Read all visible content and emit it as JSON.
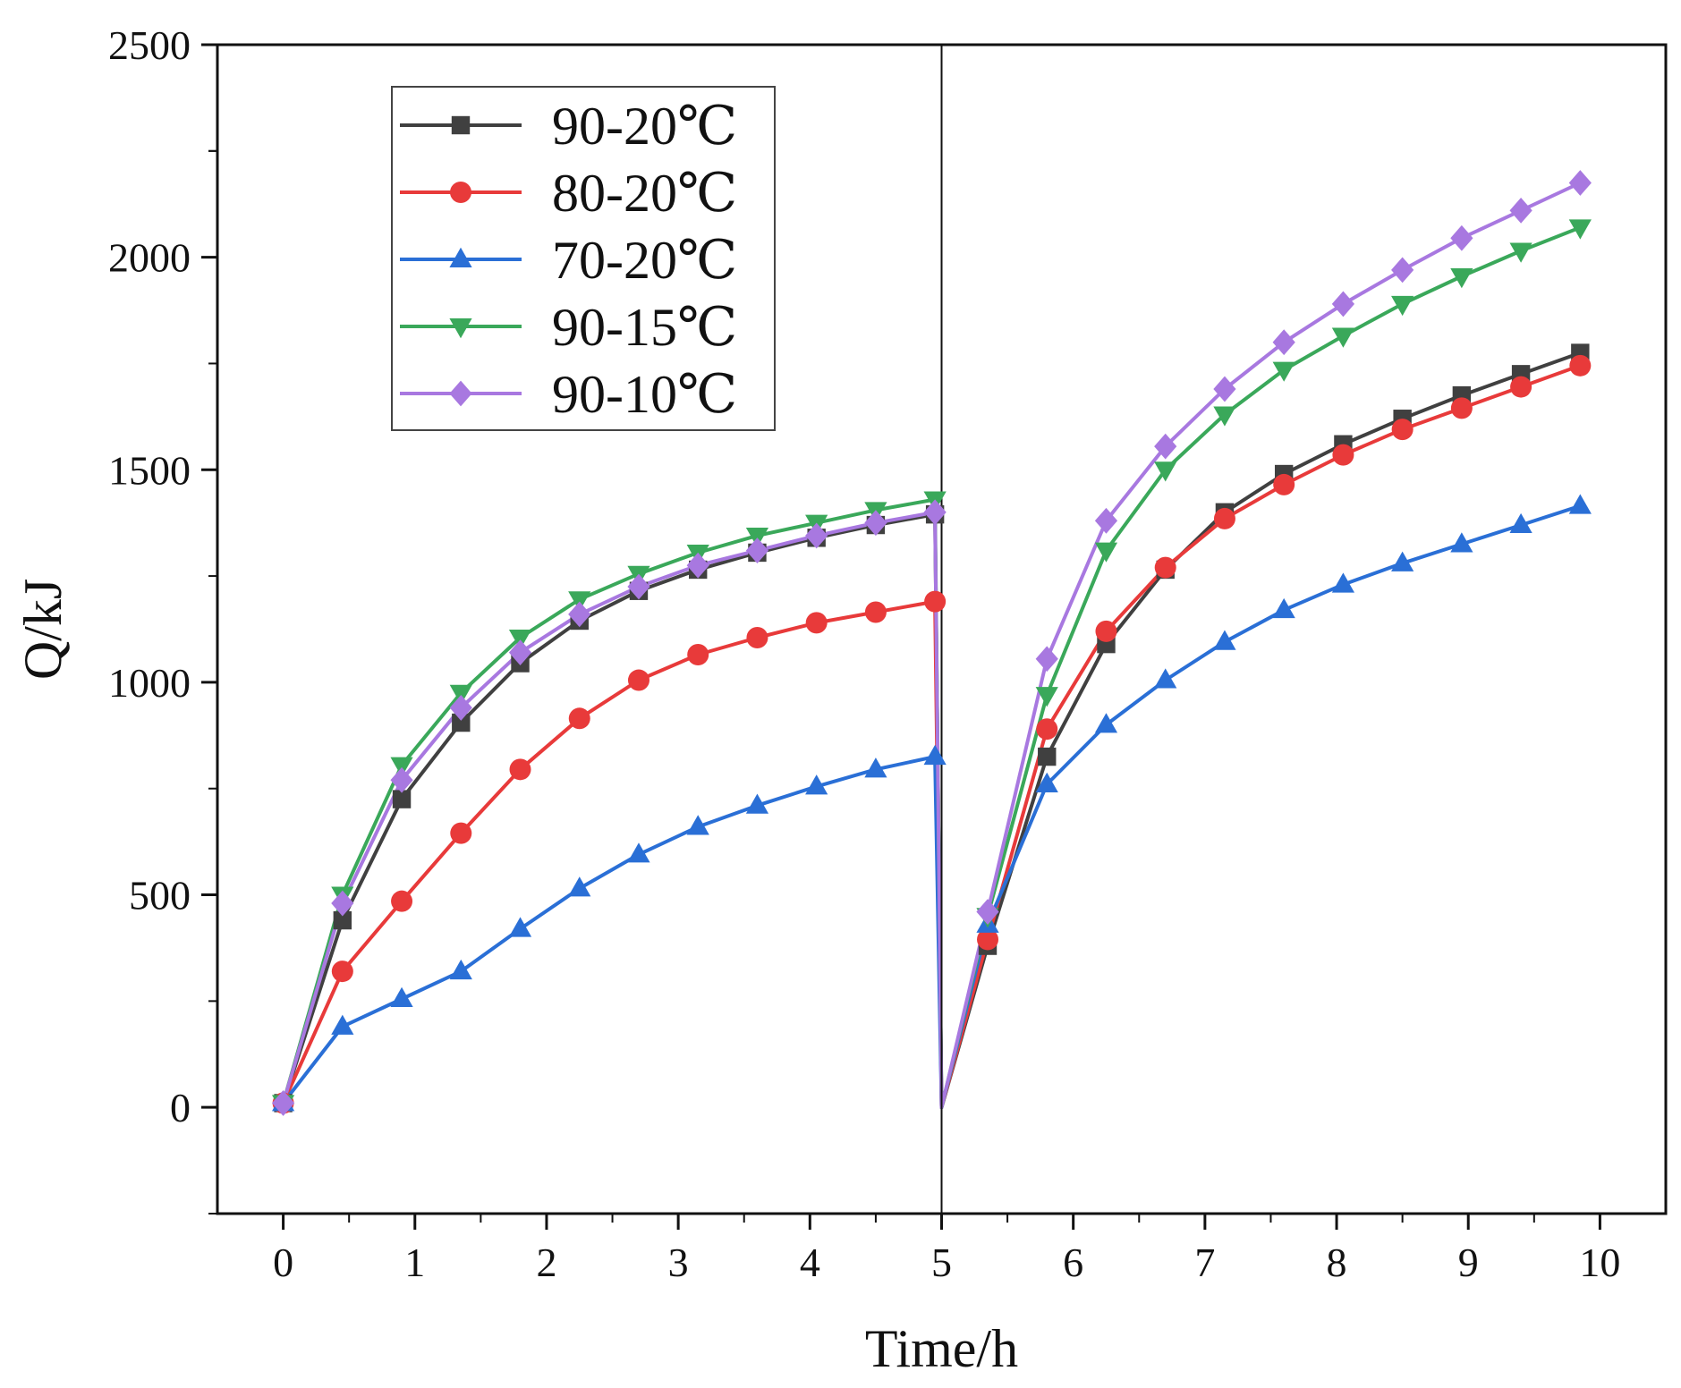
{
  "chart_data": {
    "type": "line",
    "title": "",
    "xlabel": "Time/h",
    "ylabel": "Q/kJ",
    "xlim": [
      -0.5,
      10.5
    ],
    "ylim": [
      -250,
      2500
    ],
    "xticks": [
      0,
      1,
      2,
      3,
      4,
      5,
      6,
      7,
      8,
      9,
      10
    ],
    "yticks": [
      0,
      500,
      1000,
      1500,
      2000,
      2500
    ],
    "x_tick_labels": [
      "0",
      "1",
      "2",
      "3",
      "4",
      "5",
      "6",
      "7",
      "8",
      "9",
      "10"
    ],
    "y_tick_labels": [
      "0",
      "500",
      "1000",
      "1500",
      "2000",
      "2500"
    ],
    "divider_x": 5,
    "legend_position": "top-left",
    "x": [
      0,
      0.45,
      0.9,
      1.35,
      1.8,
      2.25,
      2.7,
      3.15,
      3.6,
      4.05,
      4.5,
      4.95,
      5.0,
      5.35,
      5.8,
      6.25,
      6.7,
      7.15,
      7.6,
      8.05,
      8.5,
      8.95,
      9.4,
      9.85
    ],
    "series": [
      {
        "name": "90-20℃",
        "color": "#404040",
        "marker": "square",
        "values": [
          10,
          440,
          725,
          905,
          1045,
          1145,
          1215,
          1265,
          1305,
          1340,
          1370,
          1395,
          0,
          380,
          825,
          1090,
          1265,
          1400,
          1490,
          1560,
          1620,
          1675,
          1725,
          1775
        ]
      },
      {
        "name": "80-20℃",
        "color": "#e83a3a",
        "marker": "circle",
        "values": [
          10,
          320,
          485,
          645,
          795,
          915,
          1005,
          1065,
          1105,
          1140,
          1165,
          1190,
          0,
          395,
          890,
          1120,
          1270,
          1385,
          1465,
          1535,
          1595,
          1645,
          1695,
          1745
        ]
      },
      {
        "name": "70-20℃",
        "color": "#2a6fd6",
        "marker": "triangle-up",
        "values": [
          10,
          190,
          255,
          320,
          420,
          515,
          595,
          660,
          710,
          755,
          795,
          825,
          0,
          430,
          760,
          900,
          1005,
          1095,
          1170,
          1230,
          1280,
          1325,
          1370,
          1415
        ]
      },
      {
        "name": "90-15℃",
        "color": "#3aa85a",
        "marker": "triangle-down",
        "values": [
          10,
          500,
          805,
          975,
          1105,
          1195,
          1255,
          1305,
          1345,
          1375,
          1405,
          1430,
          0,
          450,
          970,
          1310,
          1500,
          1630,
          1735,
          1815,
          1890,
          1955,
          2015,
          2070
        ]
      },
      {
        "name": "90-10℃",
        "color": "#a878e0",
        "marker": "diamond",
        "values": [
          10,
          480,
          770,
          940,
          1070,
          1160,
          1225,
          1275,
          1310,
          1345,
          1375,
          1400,
          0,
          460,
          1055,
          1380,
          1555,
          1690,
          1800,
          1890,
          1970,
          2045,
          2110,
          2175
        ]
      }
    ]
  }
}
